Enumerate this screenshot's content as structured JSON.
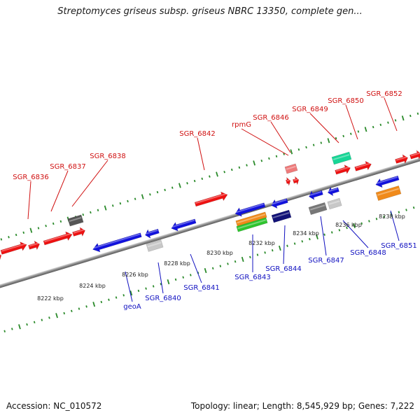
{
  "title": "Streptomyces griseus subsp. griseus NBRC 13350, complete gen...",
  "footer": {
    "accession": "Accession: NC_010572",
    "stats": "Topology: linear; Length: 8,545,929 bp; Genes: 7,222"
  },
  "colors": {
    "forward_label": "#d01010",
    "reverse_label": "#1010c0",
    "axis": "#888888",
    "tick": "#2a8a2a"
  },
  "kbp_labels": [
    "8222 kbp",
    "8224 kbp",
    "8226 kbp",
    "8228 kbp",
    "8230 kbp",
    "8232 kbp",
    "8234 kbp",
    "8236 kbp",
    "8238 kbp"
  ],
  "forward_gene_labels": [
    "SGR_6836",
    "SGR_6837",
    "SGR_6838",
    "SGR_6842",
    "rpmG",
    "SGR_6846",
    "SGR_6849",
    "SGR_6850",
    "SGR_6852"
  ],
  "reverse_gene_labels": [
    "geoA",
    "SGR_6840",
    "SGR_6841",
    "SGR_6843",
    "SGR_6844",
    "SGR_6847",
    "SGR_6848",
    "SGR_6851"
  ]
}
